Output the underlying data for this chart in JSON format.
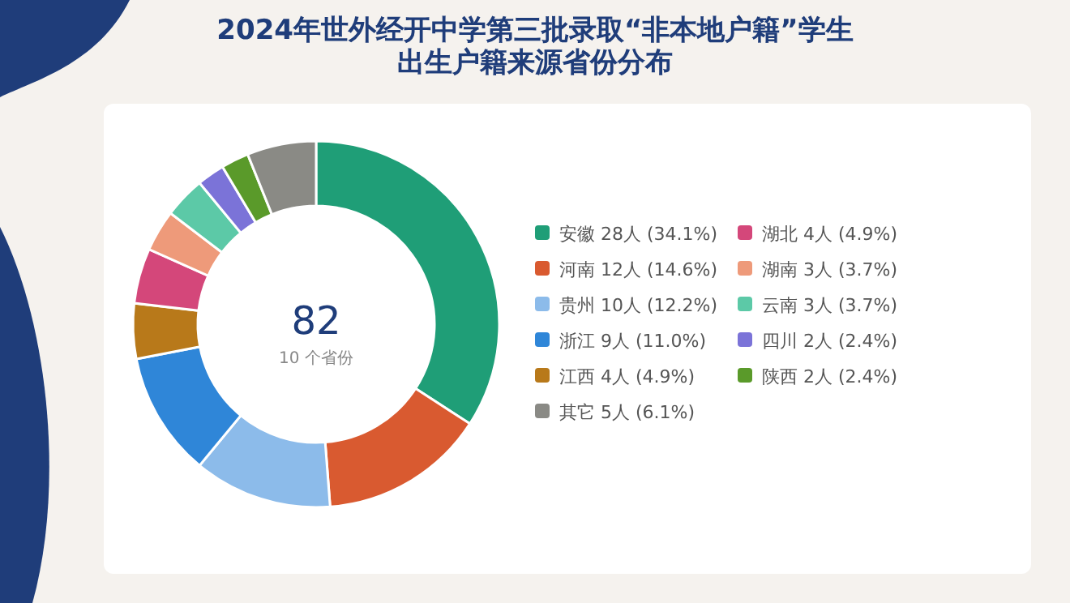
{
  "chart_data": {
    "type": "donut",
    "title": "2024年世外经开中学第三批录取“非本地户籍”学生",
    "subtitle": "出生户籍来源省份分布",
    "categories": [
      "安徽 28人 (34.1%)",
      "河南 12人 (14.6%)",
      "贵州 10人 (12.2%)",
      "浙江 9人 (11.0%)",
      "江西 4人 (4.9%)",
      "湖北 4人 (4.9%)",
      "湖南 3人 (3.7%)",
      "云南 3人 (3.7%)",
      "四川 2人 (2.4%)",
      "陕西 2人 (2.4%)",
      "其它 5人 (6.1%)"
    ],
    "values": [
      28,
      12,
      10,
      9,
      4,
      4,
      3,
      3,
      2,
      2,
      5
    ],
    "colors": [
      "#1f9e77",
      "#d95a30",
      "#8cbbea",
      "#2f86d8",
      "#b8791a",
      "#d4477a",
      "#ee9a7a",
      "#5cc9a7",
      "#7b73d8",
      "#5a9a2a",
      "#8a8a85"
    ],
    "annotations": [
      "82",
      "10 个省份"
    ],
    "legend": "right"
  }
}
